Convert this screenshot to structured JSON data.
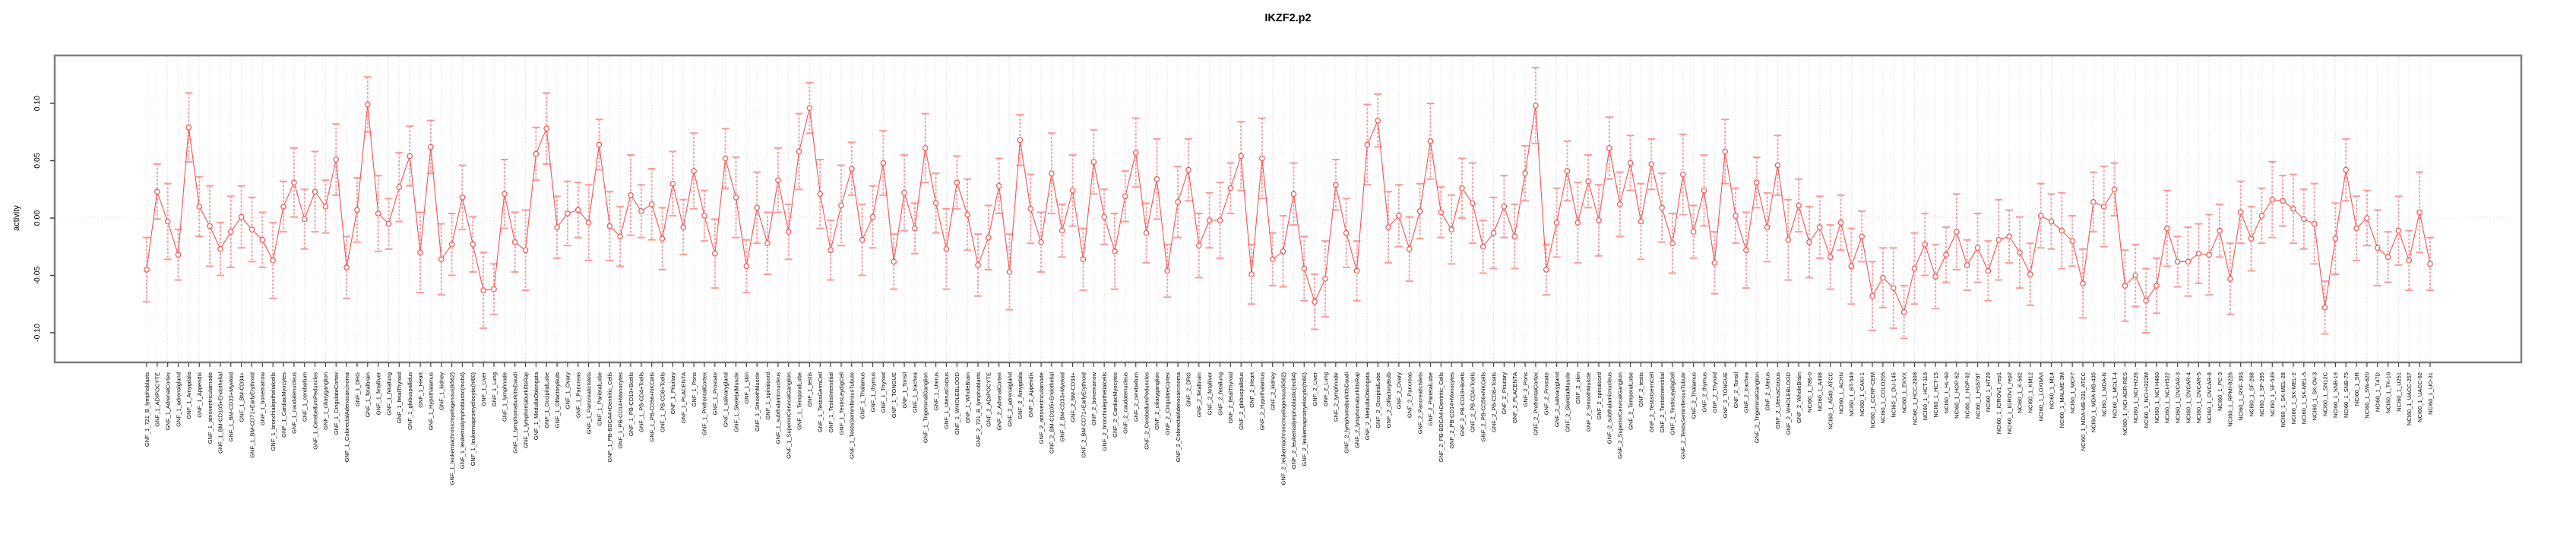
{
  "title": "IKZF2.p2",
  "y_axis": {
    "label": "activity",
    "tick_labels": [
      "0.10",
      "0.05",
      "0.00",
      "-0.05",
      "-0.10"
    ]
  },
  "colors": {
    "point_line_red": "#f45454",
    "errorbar_pink": "#fa9a9a",
    "gridline_gray": "#d4d4d4",
    "plot_border_gray": "#7f7f7f",
    "tick_gray": "#444444",
    "text_black": "#000000",
    "background": "#ffffff"
  },
  "chart_data": {
    "type": "line",
    "title": "IKZF2.p2",
    "xlabel": "",
    "ylabel": "activity",
    "ylim": [
      -0.126,
      0.142
    ],
    "yticks": [
      0.1,
      0.05,
      0.0,
      -0.05,
      -0.1
    ],
    "grid": "dotted vertical gridline at every category; dotted horizontal line at y=0",
    "legend": "none",
    "marker": "open-circle",
    "error_bars": true,
    "line_style": "solid red segments between points, dashed pink error-bar stems with caps",
    "categories": [
      "GNF_1_721_B_lymphoblasts",
      "GNF_1_ADIPOCYTE",
      "GNF_1_AdrenalCortex",
      "GNF_1_adrenalgland",
      "GNF_1_Amygdala",
      "GNF_1_Appendix",
      "GNF_1_atrioventricularnode",
      "GNF_1_BM-CD105+Endothelial",
      "GNF_1_BM-CD33+Myeloid",
      "GNF_1_BM-CD34+",
      "GNF_1_BM-CD71+EarlyErythroid",
      "GNF_1_bonemarrow",
      "GNF_1_bronchialepithelialcells",
      "GNF_1_CardiacMyocytes",
      "GNF_1_caudatenucleus",
      "GNF_1_cerebellum",
      "GNF_1_CerebellumPeduncles",
      "GNF_1_ciliaryganglion",
      "GNF_1_CingulateCortex",
      "GNF_1_ColorectalAdenocarcinoma",
      "GNF_1_DRG",
      "GNF_1_fetalbrain",
      "GNF_1_fetalliver",
      "GNF_1_fetallung",
      "GNF_1_fetalThyroid",
      "GNF_1_globuspallidus",
      "GNF_1_Heart",
      "GNF_1_Hypothalamus",
      "GNF_1_kidney",
      "GNF_1_leukemiachronicmyelogenous(k562)",
      "GNF_1_leukemialymphoblastic(molt4)",
      "GNF_1_leukemiapromyelocytic(hl60)",
      "GNF_1_Liver",
      "GNF_1_Lung",
      "GNF_1_lymphnode",
      "GNF_1_lymphomaburkittsDaudi",
      "GNF_1_lymphomaburkittsRaji",
      "GNF_1_MedullaOblongata",
      "GNF_1_OccipitalLobe",
      "GNF_1_OlfactoryBulb",
      "GNF_1_Ovary",
      "GNF_1_Pancreas",
      "GNF_1_PancreaticIslets",
      "GNF_1_ParietalLobe",
      "GNF_1_PB-BDCA4+Dentritic_Cells",
      "GNF_1_PB-CD14+Monocytes",
      "GNF_1_PB-CD19+Bcells",
      "GNF_1_PB-CD4+Tcells",
      "GNF_1_PB-CD56+NKCells",
      "GNF_1_PB-CD8+Tcells",
      "GNF_1_Pituitary",
      "GNF_1_PLACENTA",
      "GNF_1_Pons",
      "GNF_1_PrefrontalCortex",
      "GNF_1_Prostate",
      "GNF_1_salivarygland",
      "GNF_1_SkeletalMuscle",
      "GNF_1_skin",
      "GNF_1_SmoothMuscle",
      "GNF_1_spinalcord",
      "GNF_1_subthalamicnucleus",
      "GNF_1_SuperiorCervicalGanglion",
      "GNF_1_TemporalLobe",
      "GNF_1_testis",
      "GNF_1_TestisGermCell",
      "GNF_1_TestisInterstitial",
      "GNF_1_TestisLeydigCell",
      "GNF_1_TestisSeminiferousTubule",
      "GNF_1_Thalamus",
      "GNF_1_thymus",
      "GNF_1_Thyroid",
      "GNF_1_TONGUE",
      "GNF_1_Tonsil",
      "GNF_1_trachea",
      "GNF_1_TrigeminalGanglion",
      "GNF_1_Uterus",
      "GNF_1_UterusCorpus",
      "GNF_1_WHOLEBLOOD",
      "GNF_1_WholeBrain",
      "GNF_2_721_B_lymphoblasts",
      "GNF_2_ADIPOCYTE",
      "GNF_2_AdrenalCortex",
      "GNF_2_adrenalgland",
      "GNF_2_Amygdala",
      "GNF_2_Appendix",
      "GNF_2_atrioventricularnode",
      "GNF_2_BM-CD105+Endothelial",
      "GNF_2_BM-CD33+Myeloid",
      "GNF_2_BM-CD34+",
      "GNF_2_BM-CD71+EarlyErythroid",
      "GNF_2_bonemarrow",
      "GNF_2_bronchialepithelialcells",
      "GNF_2_CardiacMyocytes",
      "GNF_2_caudatenucleus",
      "GNF_2_cerebellum",
      "GNF_2_CerebellumPeduncles",
      "GNF_2_ciliaryganglion",
      "GNF_2_CingulateCortex",
      "GNF_2_ColorectalAdenocarcinoma",
      "GNF_2_DRG",
      "GNF_2_fetalbrain",
      "GNF_2_fetalliver",
      "GNF_2_fetallung",
      "GNF_2_fetalThyroid",
      "GNF_2_globuspallidus",
      "GNF_2_Heart",
      "GNF_2_Hypothalamus",
      "GNF_2_kidney",
      "GNF_2_leukemiachronicmyelogenous(k562)",
      "GNF_2_leukemialymphoblastic(molt4)",
      "GNF_2_leukemiapromyelocytic(hl60)",
      "GNF_2_Liver",
      "GNF_2_Lung",
      "GNF_2_lymphnode",
      "GNF_2_lymphomaburkittsDaudi",
      "GNF_2_lymphomaburkittsRaji",
      "GNF_2_MedullaOblongata",
      "GNF_2_OccipitalLobe",
      "GNF_2_OlfactoryBulb",
      "GNF_2_Ovary",
      "GNF_2_Pancreas",
      "GNF_2_PancreaticIslets",
      "GNF_2_ParietalLobe",
      "GNF_2_PB-BDCA4+Dentritic_Cells",
      "GNF_2_PB-CD14+Monocytes",
      "GNF_2_PB-CD19+Bcells",
      "GNF_2_PB-CD4+Tcells",
      "GNF_2_PB-CD56+NKCells",
      "GNF_2_PB-CD8+Tcells",
      "GNF_2_Pituitary",
      "GNF_2_PLACENTA",
      "GNF_2_Pons",
      "GNF_2_PrefrontalCortex",
      "GNF_2_Prostate",
      "GNF_2_salivarygland",
      "GNF_2_SkeletalMuscle",
      "GNF_2_skin",
      "GNF_2_SmoothMuscle",
      "GNF_2_spinalcord",
      "GNF_2_subthalamicnucleus",
      "GNF_2_SuperiorCervicalGanglion",
      "GNF_2_TemporalLobe",
      "GNF_2_testis",
      "GNF_2_TestisGermCell",
      "GNF_2_TestisInterstitial",
      "GNF_2_TestisLeydigCell",
      "GNF_2_TestisSeminiferousTubule",
      "GNF_2_Thalamus",
      "GNF_2_thymus",
      "GNF_2_Thyroid",
      "GNF_2_TONGUE",
      "GNF_2_Tonsil",
      "GNF_2_trachea",
      "GNF_2_TrigeminalGanglion",
      "GNF_2_Uterus",
      "GNF_2_UterusCorpus",
      "GNF_2_WHOLEBLOOD",
      "GNF_2_WholeBrain",
      "NCI60_1_786-0",
      "NCI60_1_A498",
      "NCI60_1_A549_ATCC",
      "NCI60_1_ACHN",
      "NCI60_1_BT-549",
      "NCI60_1_CAKI-1",
      "NCI60_1_CCRF-CEM",
      "NCI60_1_COLO205",
      "NCI60_1_DU-145",
      "NCI60_1_EKVX",
      "NCI60_1_HCC-2998",
      "NCI60_1_HCT-116",
      "NCI60_1_HCT-15",
      "NCI60_1_HL-60",
      "NCI60_1_HOP-62",
      "NCI60_1_HOP-92",
      "NCI60_1_HS578T",
      "NCI60_1_HT29",
      "NCI60_1_IGROV1_rep1",
      "NCI60_1_IGROV1_rep2",
      "NCI60_1_K-562",
      "NCI60_1_KM12",
      "NCI60_1_LOXIMVI",
      "NCI60_1_M14",
      "NCI60_1_MALME-3M",
      "NCI60_1_MCF7",
      "NCI60_1_MDA-MB-231_ATCC",
      "NCI60_1_MDA-MB-435",
      "NCI60_1_MDA-N",
      "NCI60_1_MOLT-4",
      "NCI60_1_NCI-ADR-RES",
      "NCI60_1_NCI-H226",
      "NCI60_1_NCI-H322M",
      "NCI60_1_NCI-H460",
      "NCI60_1_NCI-H522",
      "NCI60_1_OVCAR-3",
      "NCI60_1_OVCAR-4",
      "NCI60_1_OVCAR-5",
      "NCI60_1_OVCAR-8",
      "NCI60_1_PC-3",
      "NCI60_1_RPMI-8226",
      "NCI60_1_RXF-393",
      "NCI60_1_SF-268",
      "NCI60_1_SF-295",
      "NCI60_1_SF-539",
      "NCI60_1_SK-MEL-28",
      "NCI60_1_SK-MEL-2",
      "NCI60_1_SK-MEL-5",
      "NCI60_1_SK-OV-3",
      "NCI60_1_SN12C",
      "NCI60_1_SNB-19",
      "NCI60_1_SNB-75",
      "NCI60_1_SR",
      "NCI60_1_SW-620",
      "NCI60_1_T47D",
      "NCI60_1_TK-10",
      "NCI60_1_U251",
      "NCI60_1_UACC-257",
      "NCI60_1_UACC-62",
      "NCI60_1_UO-31"
    ],
    "series": [
      {
        "name": "activity",
        "values": [
          -0.045,
          0.023,
          -0.003,
          -0.032,
          0.079,
          0.01,
          -0.007,
          -0.027,
          -0.012,
          0.001,
          -0.01,
          -0.019,
          -0.037,
          0.01,
          0.031,
          -0.001,
          0.023,
          0.01,
          0.051,
          -0.043,
          0.007,
          0.099,
          0.004,
          -0.005,
          0.027,
          0.054,
          -0.03,
          0.062,
          -0.036,
          -0.023,
          0.018,
          -0.023,
          -0.063,
          -0.062,
          0.021,
          -0.021,
          -0.028,
          0.056,
          0.078,
          -0.008,
          0.004,
          0.007,
          -0.004,
          0.064,
          -0.007,
          -0.016,
          0.02,
          0.006,
          0.012,
          -0.018,
          0.03,
          -0.008,
          0.041,
          0.002,
          -0.031,
          0.052,
          0.018,
          -0.042,
          0.009,
          -0.022,
          0.033,
          -0.012,
          0.058,
          0.096,
          0.021,
          -0.028,
          0.011,
          0.043,
          -0.019,
          0.001,
          0.048,
          -0.038,
          0.022,
          -0.009,
          0.061,
          0.013,
          -0.027,
          0.031,
          0.003,
          -0.041,
          -0.017,
          0.028,
          -0.047,
          0.068,
          0.008,
          -0.021,
          0.039,
          -0.011,
          0.024,
          -0.036,
          0.049,
          0.001,
          -0.029,
          0.019,
          0.057,
          -0.013,
          0.034,
          -0.046,
          0.014,
          0.042,
          -0.024,
          -0.002,
          -0.002,
          0.026,
          0.054,
          -0.049,
          0.052,
          -0.036,
          -0.029,
          0.021,
          -0.044,
          -0.073,
          -0.053,
          0.029,
          -0.013,
          -0.046,
          0.064,
          0.085,
          -0.008,
          0.002,
          -0.027,
          0.006,
          0.067,
          0.005,
          -0.01,
          0.026,
          0.013,
          -0.025,
          -0.013,
          0.01,
          -0.016,
          0.039,
          0.098,
          -0.045,
          -0.004,
          0.041,
          -0.004,
          0.032,
          -0.002,
          0.061,
          0.012,
          0.048,
          -0.003,
          0.047,
          0.009,
          -0.022,
          0.038,
          -0.012,
          0.024,
          -0.039,
          0.058,
          0.002,
          -0.028,
          0.031,
          -0.008,
          0.046,
          -0.019,
          0.011,
          -0.021,
          -0.008,
          -0.034,
          -0.004,
          -0.042,
          -0.016,
          -0.068,
          -0.052,
          -0.061,
          -0.082,
          -0.044,
          -0.023,
          -0.051,
          -0.032,
          -0.012,
          -0.041,
          -0.026,
          -0.046,
          -0.019,
          -0.016,
          -0.03,
          -0.049,
          0.002,
          -0.003,
          -0.011,
          -0.02,
          -0.057,
          0.014,
          0.01,
          0.025,
          -0.059,
          -0.05,
          -0.072,
          -0.059,
          -0.009,
          -0.038,
          -0.038,
          -0.031,
          -0.032,
          -0.011,
          -0.053,
          0.005,
          -0.018,
          0.002,
          0.016,
          0.015,
          0.008,
          -0.001,
          -0.005,
          -0.078,
          -0.018,
          0.042,
          -0.009,
          0.0,
          -0.026,
          -0.034,
          -0.011,
          -0.037,
          0.005,
          -0.04
        ],
        "errors": [
          0.028,
          0.024,
          0.033,
          0.022,
          0.03,
          0.026,
          0.035,
          0.023,
          0.031,
          0.027,
          0.028,
          0.024,
          0.033,
          0.022,
          0.03,
          0.026,
          0.035,
          0.023,
          0.031,
          0.027,
          0.028,
          0.024,
          0.033,
          0.022,
          0.03,
          0.026,
          0.035,
          0.023,
          0.031,
          0.027,
          0.028,
          0.024,
          0.033,
          0.022,
          0.03,
          0.026,
          0.035,
          0.023,
          0.031,
          0.027,
          0.028,
          0.024,
          0.033,
          0.022,
          0.03,
          0.026,
          0.035,
          0.023,
          0.031,
          0.027,
          0.028,
          0.024,
          0.033,
          0.022,
          0.03,
          0.026,
          0.035,
          0.023,
          0.031,
          0.027,
          0.028,
          0.024,
          0.033,
          0.022,
          0.03,
          0.026,
          0.035,
          0.023,
          0.031,
          0.027,
          0.028,
          0.024,
          0.033,
          0.022,
          0.03,
          0.026,
          0.035,
          0.023,
          0.031,
          0.027,
          0.028,
          0.024,
          0.033,
          0.022,
          0.03,
          0.026,
          0.035,
          0.023,
          0.031,
          0.027,
          0.028,
          0.024,
          0.033,
          0.022,
          0.03,
          0.026,
          0.035,
          0.023,
          0.031,
          0.027,
          0.028,
          0.024,
          0.033,
          0.022,
          0.03,
          0.026,
          0.035,
          0.023,
          0.031,
          0.027,
          0.028,
          0.024,
          0.033,
          0.022,
          0.03,
          0.026,
          0.035,
          0.023,
          0.031,
          0.027,
          0.028,
          0.024,
          0.033,
          0.022,
          0.03,
          0.026,
          0.035,
          0.023,
          0.031,
          0.027,
          0.028,
          0.024,
          0.033,
          0.022,
          0.03,
          0.026,
          0.035,
          0.023,
          0.031,
          0.027,
          0.028,
          0.024,
          0.033,
          0.022,
          0.03,
          0.026,
          0.035,
          0.023,
          0.031,
          0.027,
          0.028,
          0.024,
          0.033,
          0.022,
          0.03,
          0.026,
          0.035,
          0.023,
          0.031,
          0.027,
          0.028,
          0.024,
          0.033,
          0.022,
          0.03,
          0.026,
          0.035,
          0.023,
          0.031,
          0.027,
          0.028,
          0.024,
          0.033,
          0.022,
          0.03,
          0.026,
          0.035,
          0.023,
          0.031,
          0.027,
          0.028,
          0.024,
          0.033,
          0.022,
          0.03,
          0.026,
          0.035,
          0.023,
          0.031,
          0.027,
          0.028,
          0.024,
          0.033,
          0.022,
          0.03,
          0.026,
          0.035,
          0.023,
          0.031,
          0.027,
          0.028,
          0.024,
          0.033,
          0.022,
          0.03,
          0.026,
          0.035,
          0.023,
          0.031,
          0.027,
          0.028,
          0.024,
          0.033,
          0.022,
          0.03,
          0.026,
          0.035,
          0.023
        ]
      }
    ]
  }
}
